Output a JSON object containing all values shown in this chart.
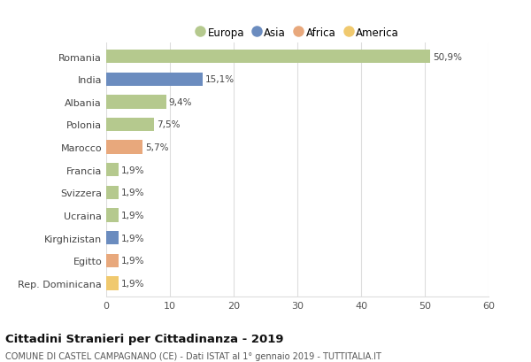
{
  "countries": [
    "Romania",
    "India",
    "Albania",
    "Polonia",
    "Marocco",
    "Francia",
    "Svizzera",
    "Ucraina",
    "Kirghizistan",
    "Egitto",
    "Rep. Dominicana"
  ],
  "values": [
    50.9,
    15.1,
    9.4,
    7.5,
    5.7,
    1.9,
    1.9,
    1.9,
    1.9,
    1.9,
    1.9
  ],
  "labels": [
    "50,9%",
    "15,1%",
    "9,4%",
    "7,5%",
    "5,7%",
    "1,9%",
    "1,9%",
    "1,9%",
    "1,9%",
    "1,9%",
    "1,9%"
  ],
  "colors": [
    "#b5c98e",
    "#6b8cbf",
    "#b5c98e",
    "#b5c98e",
    "#e8a87c",
    "#b5c98e",
    "#b5c98e",
    "#b5c98e",
    "#6b8cbf",
    "#e8a87c",
    "#f0c96e"
  ],
  "legend_labels": [
    "Europa",
    "Asia",
    "Africa",
    "America"
  ],
  "legend_colors": [
    "#b5c98e",
    "#6b8cbf",
    "#e8a87c",
    "#f0c96e"
  ],
  "title": "Cittadini Stranieri per Cittadinanza - 2019",
  "subtitle": "COMUNE DI CASTEL CAMPAGNANO (CE) - Dati ISTAT al 1° gennaio 2019 - TUTTITALIA.IT",
  "xlim": [
    0,
    60
  ],
  "xticks": [
    0,
    10,
    20,
    30,
    40,
    50,
    60
  ],
  "bg_color": "#ffffff",
  "grid_color": "#dddddd",
  "bar_height": 0.6
}
